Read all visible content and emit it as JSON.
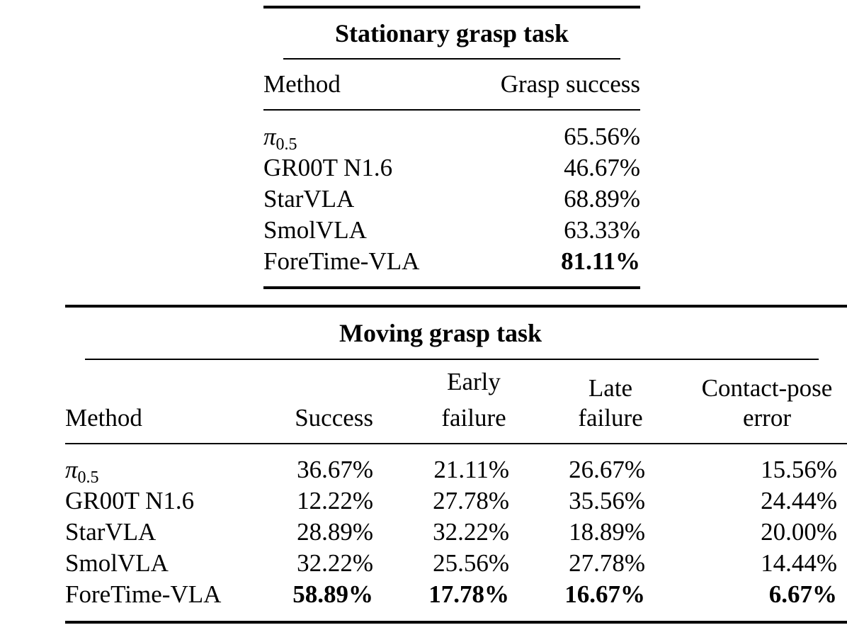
{
  "stationary": {
    "title": "Stationary grasp task",
    "headers": {
      "method": "Method",
      "success": "Grasp success"
    },
    "rows": [
      {
        "method_sym": "π",
        "method_sub": "0.5",
        "success": "65.56%",
        "best": false
      },
      {
        "method": "GR00T N1.6",
        "success": "46.67%",
        "best": false
      },
      {
        "method": "StarVLA",
        "success": "68.89%",
        "best": false
      },
      {
        "method": "SmolVLA",
        "success": "63.33%",
        "best": false
      },
      {
        "method": "ForeTime-VLA",
        "success": "81.11%",
        "best": true
      }
    ]
  },
  "moving": {
    "title": "Moving grasp task",
    "headers": {
      "method": "Method",
      "success": "Success",
      "early_1": "Early",
      "early_2": "failure",
      "late_1": "Late",
      "late_2": "failure",
      "contact_1": "Contact-pose",
      "contact_2": "error"
    },
    "rows": [
      {
        "method_sym": "π",
        "method_sub": "0.5",
        "success": "36.67%",
        "early": "21.11%",
        "late": "26.67%",
        "contact": "15.56%"
      },
      {
        "method": "GR00T N1.6",
        "success": "12.22%",
        "early": "27.78%",
        "late": "35.56%",
        "contact": "24.44%"
      },
      {
        "method": "StarVLA",
        "success": "28.89%",
        "early": "32.22%",
        "late": "18.89%",
        "contact": "20.00%"
      },
      {
        "method": "SmolVLA",
        "success": "32.22%",
        "early": "25.56%",
        "late": "27.78%",
        "contact": "14.44%"
      },
      {
        "method": "ForeTime-VLA",
        "success": "58.89%",
        "early": "17.78%",
        "late": "16.67%",
        "contact": "6.67%",
        "best": true
      }
    ]
  }
}
